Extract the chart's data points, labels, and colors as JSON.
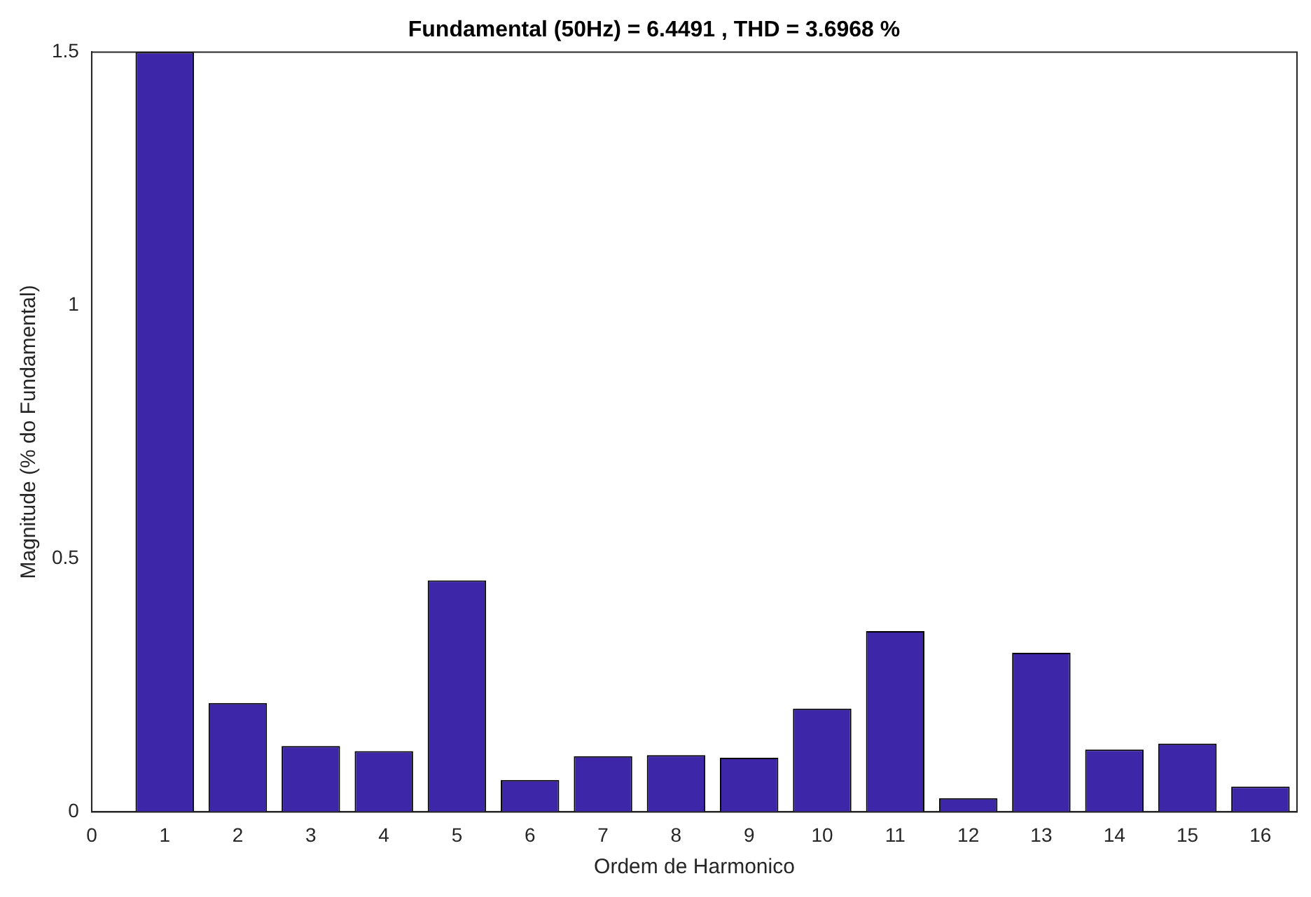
{
  "chart_data": {
    "type": "bar",
    "title": "Fundamental (50Hz) = 6.4491 , THD = 3.6968 %",
    "xlabel": "Ordem de Harmonico",
    "ylabel": "Magnitude (% do Fundamental)",
    "x": [
      1,
      2,
      3,
      4,
      5,
      6,
      7,
      8,
      9,
      10,
      11,
      12,
      13,
      14,
      15,
      16
    ],
    "values": [
      1.5,
      0.215,
      0.13,
      0.12,
      0.457,
      0.063,
      0.11,
      0.112,
      0.107,
      0.204,
      0.357,
      0.027,
      0.314,
      0.123,
      0.135,
      0.05
    ],
    "color": "#3d26a8",
    "xlim": [
      0,
      16.5
    ],
    "xticks": [
      0,
      1,
      2,
      3,
      4,
      5,
      6,
      7,
      8,
      9,
      10,
      11,
      12,
      13,
      14,
      15,
      16
    ],
    "ylim": [
      0,
      1.5
    ],
    "yticks": [
      0,
      0.5,
      1,
      1.5
    ],
    "grid": false,
    "legend": false
  }
}
